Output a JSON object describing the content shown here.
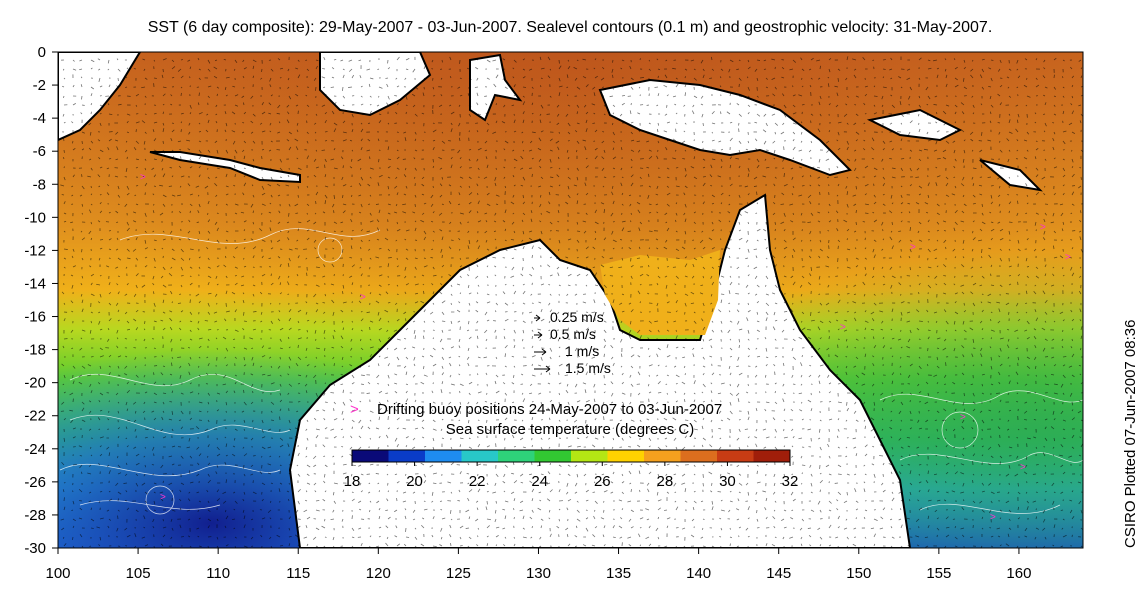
{
  "title": "SST (6 day composite): 29-May-2007 - 03-Jun-2007. Sealevel contours (0.1 m) and geostrophic velocity: 31-May-2007.",
  "credit": "CSIRO Plotted 07-Jun-2007 08:36",
  "map": {
    "lon_range": [
      100,
      164
    ],
    "lat_range": [
      -30,
      0
    ],
    "x_ticks": [
      "100",
      "105",
      "110",
      "115",
      "120",
      "125",
      "130",
      "135",
      "140",
      "145",
      "150",
      "155",
      "160"
    ],
    "y_ticks": [
      "0",
      "-2",
      "-4",
      "-6",
      "-8",
      "-10",
      "-12",
      "-14",
      "-16",
      "-18",
      "-20",
      "-22",
      "-24",
      "-26",
      "-28",
      "-30"
    ]
  },
  "velocity_legend": [
    {
      "label": "0.25 m/s",
      "speed": 0.25
    },
    {
      "label": "0.5 m/s",
      "speed": 0.5
    },
    {
      "label": "1 m/s",
      "speed": 1
    },
    {
      "label": "1.5 m/s",
      "speed": 1.5
    }
  ],
  "buoy_legend": {
    "symbol": ">",
    "label": "Drifting buoy positions 24-May-2007 to 03-Jun-2007",
    "color": "#ff33cc"
  },
  "colorbar": {
    "title": "Sea surface temperature (degrees C)",
    "range": [
      18,
      32
    ],
    "ticks": [
      "18",
      "20",
      "22",
      "24",
      "26",
      "28",
      "30",
      "32"
    ],
    "colors": [
      "#0a0a78",
      "#0a3cc8",
      "#1e8cf0",
      "#28c8c8",
      "#2ed27a",
      "#32c832",
      "#b4e614",
      "#ffd200",
      "#f5a01e",
      "#dc6e1e",
      "#c83c14",
      "#a01e0a"
    ]
  },
  "colors": {
    "land": "#ffffff",
    "coast": "#000000",
    "contour": "#ffffff",
    "arrow": "#000000"
  }
}
